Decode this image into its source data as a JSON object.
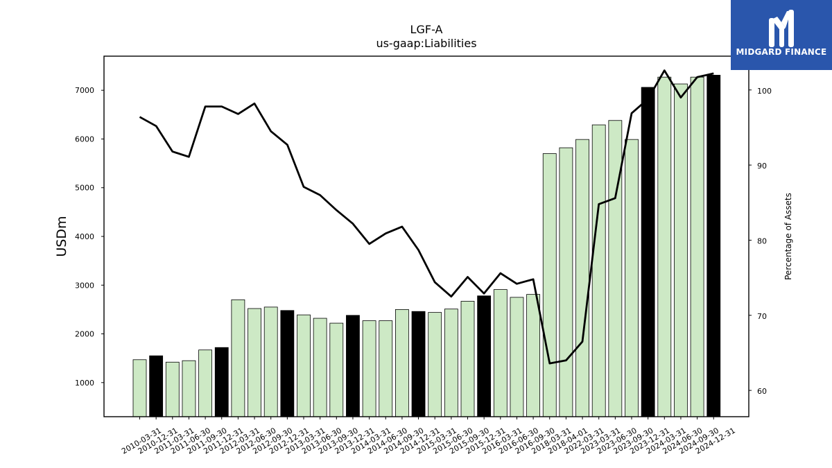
{
  "logo": {
    "text": "MIDGARD FINANCE",
    "icon": "midgard-m-logo-icon",
    "background": "#2a56ac"
  },
  "chart_data": {
    "type": "bar",
    "title": "LGF-A",
    "subtitle": "us-gaap:Liabilities",
    "ylabel": "USDm",
    "y2label": "Percentage of Assets",
    "ylim": [
      300,
      7700
    ],
    "yticks": [
      1000,
      2000,
      3000,
      4000,
      5000,
      6000,
      7000
    ],
    "y2lim": [
      56.5,
      104.5
    ],
    "y2ticks": [
      60,
      70,
      80,
      90,
      100
    ],
    "grid": false,
    "colors": {
      "bar": "#cde9c5",
      "bar_annual": "#000000",
      "line": "#000000"
    },
    "categories": [
      "2010-03-31",
      "2010-12-31",
      "2011-03-31",
      "2011-06-30",
      "2011-09-30",
      "2011-12-31",
      "2012-03-31",
      "2012-06-30",
      "2012-09-30",
      "2012-12-31",
      "2013-03-31",
      "2013-06-30",
      "2013-09-30",
      "2013-12-31",
      "2014-03-31",
      "2014-06-30",
      "2014-09-30",
      "2014-12-31",
      "2015-03-31",
      "2015-06-30",
      "2015-09-30",
      "2015-12-31",
      "2016-03-31",
      "2016-06-30",
      "2016-09-30",
      "2018-03-31",
      "2018-04-01",
      "2022-03-31",
      "2023-03-31",
      "2023-06-30",
      "2023-09-30",
      "2023-12-31",
      "2024-03-31",
      "2024-06-30",
      "2024-09-30",
      "2024-12-31"
    ],
    "series": [
      {
        "values": [
          1470,
          1550,
          1420,
          1450,
          1670,
          1720,
          2700,
          2520,
          2550,
          2480,
          2390,
          2320,
          2220,
          2380,
          2270,
          2270,
          2500,
          2460,
          2440,
          2510,
          2670,
          2780,
          2910,
          2750,
          2810,
          5700,
          5820,
          5990,
          6290,
          6380,
          5990,
          7060,
          7270,
          7130,
          7270,
          7310
        ],
        "highlight": [
          false,
          true,
          false,
          false,
          false,
          true,
          false,
          false,
          false,
          true,
          false,
          false,
          false,
          true,
          false,
          false,
          false,
          true,
          false,
          false,
          false,
          true,
          false,
          false,
          false,
          false,
          false,
          false,
          false,
          false,
          false,
          true,
          false,
          false,
          false,
          true
        ]
      },
      {
        "axis": "right",
        "type": "line",
        "values": [
          96.4,
          95.2,
          91.8,
          91.1,
          97.8,
          97.8,
          96.8,
          98.2,
          94.5,
          92.7,
          87.1,
          86.0,
          84.0,
          82.2,
          79.5,
          80.9,
          81.8,
          78.7,
          74.4,
          72.5,
          75.1,
          72.9,
          75.6,
          74.2,
          74.8,
          63.6,
          64.0,
          66.5,
          84.8,
          85.6,
          96.9,
          98.8,
          102.6,
          99.0,
          101.7,
          102.2
        ]
      }
    ]
  }
}
